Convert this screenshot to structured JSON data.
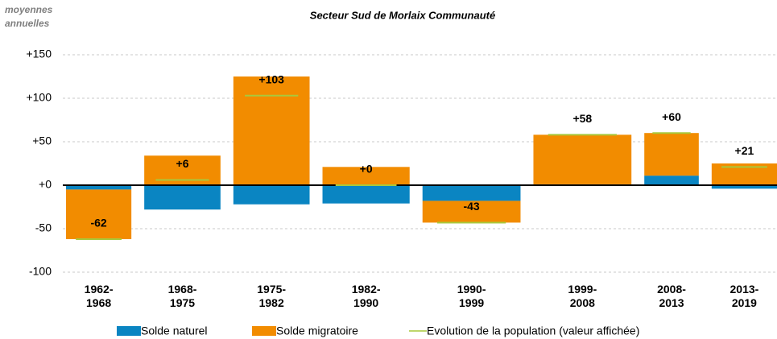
{
  "chart_data": {
    "type": "bar",
    "stacked": true,
    "title": "Secteur Sud de Morlaix Communauté",
    "ylabel": "moyennes annuelles",
    "categories": [
      "1962-1968",
      "1968-1975",
      "1975-1982",
      "1982-1990",
      "1990-1999",
      "1999-2008",
      "2008-2013",
      "2013-2019"
    ],
    "series": [
      {
        "name": "Solde naturel",
        "color": "#0a85c2",
        "values": [
          -5,
          -28,
          -22,
          -21,
          -18,
          1,
          11,
          -4
        ]
      },
      {
        "name": "Solde migratoire",
        "color": "#f28c00",
        "values": [
          -57,
          34,
          125,
          21,
          -25,
          57,
          49,
          25
        ]
      },
      {
        "name": "Evolution de la population (valeur affichée)",
        "color": "#a8c83c",
        "type": "line",
        "values": [
          -62,
          6,
          103,
          0,
          -43,
          58,
          60,
          21
        ],
        "value_labels": [
          "-62",
          "+6",
          "+103",
          "+0",
          "-43",
          "+58",
          "+60",
          "+21"
        ]
      }
    ],
    "ylim": [
      -100,
      150
    ],
    "yticks": [
      {
        "value": -100,
        "label": "-100"
      },
      {
        "value": -50,
        "label": "-50"
      },
      {
        "value": 0,
        "label": "+0"
      },
      {
        "value": 50,
        "label": "+50"
      },
      {
        "value": 100,
        "label": "+100"
      },
      {
        "value": 150,
        "label": "+150"
      }
    ],
    "grid": true
  }
}
